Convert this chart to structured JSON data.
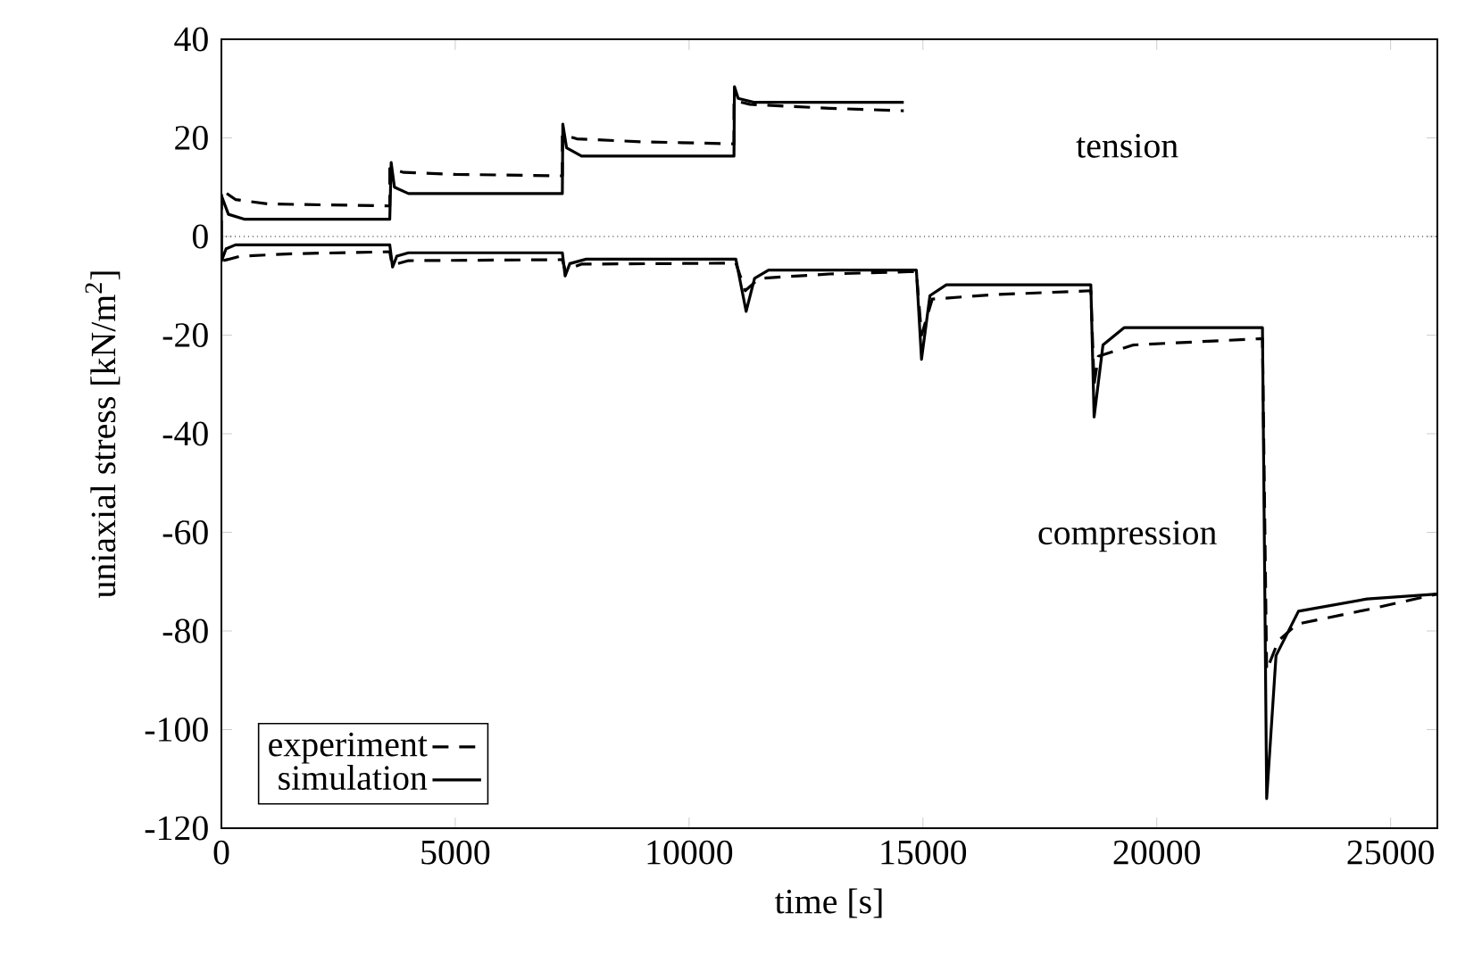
{
  "chart_data": {
    "type": "line",
    "xlabel": "time [s]",
    "ylabel": "uniaxial stress [kN/m$^{2}$]",
    "xlim": [
      0,
      26000
    ],
    "ylim": [
      -120,
      40
    ],
    "xticks": [
      0,
      5000,
      10000,
      15000,
      20000,
      25000
    ],
    "yticks": [
      -120,
      -100,
      -80,
      -60,
      -40,
      -20,
      0,
      20,
      40
    ],
    "grid": false,
    "legend": "bottom left",
    "marker": "none",
    "ref_lines": [
      {
        "axis": "y",
        "value": 0,
        "line_style": "dotted",
        "color": "#000000"
      }
    ],
    "annotations": [
      "tension",
      "compression"
    ],
    "series": [
      {
        "name": "experiment",
        "color": "#000000",
        "line_style": "dashed",
        "x": [
          0,
          0,
          300,
          1000,
          3600,
          3600,
          3900,
          5000,
          7290,
          7290,
          7600,
          9000,
          10960,
          10960,
          11300,
          13000,
          14590,
          null,
          0,
          0,
          400,
          1500,
          3600,
          3650,
          4000,
          7290,
          7350,
          7700,
          11000,
          11200,
          11500,
          13000,
          14860,
          14970,
          15200,
          16500,
          18590,
          18660,
          18750,
          19500,
          22260,
          22350,
          22600,
          23000,
          24540,
          26000
        ],
        "values": [
          0,
          9.5,
          7.5,
          6.6,
          6.2,
          13.8,
          13.0,
          12.6,
          12.3,
          20.7,
          19.8,
          19.2,
          18.8,
          27.6,
          26.8,
          26.0,
          25.5,
          null,
          0,
          -5.0,
          -4.0,
          -3.5,
          -3.1,
          -5.8,
          -4.9,
          -4.7,
          -6.8,
          -5.6,
          -5.4,
          -11.0,
          -8.5,
          -7.6,
          -7.1,
          -20.0,
          -12.7,
          -11.8,
          -11.0,
          -30.0,
          -24.3,
          -22.0,
          -20.7,
          -88.0,
          -82.0,
          -78.6,
          -75.6,
          -72.5
        ]
      },
      {
        "name": "simulation",
        "color": "#000000",
        "line_style": "solid",
        "x": [
          0,
          0,
          150,
          500,
          3600,
          3630,
          3700,
          4000,
          7290,
          7300,
          7380,
          7700,
          10960,
          10970,
          11050,
          11400,
          14590,
          null,
          0,
          0,
          100,
          300,
          3600,
          3660,
          3750,
          4000,
          7290,
          7350,
          7450,
          7800,
          11000,
          11220,
          11400,
          11700,
          14860,
          14970,
          15150,
          15500,
          18590,
          18660,
          18850,
          19300,
          22260,
          22350,
          22550,
          23030,
          24500,
          26000
        ],
        "values": [
          0,
          8.3,
          4.5,
          3.5,
          3.5,
          15.0,
          10.0,
          8.7,
          8.7,
          22.8,
          18.0,
          16.3,
          16.3,
          30.4,
          28.0,
          27.2,
          27.2,
          null,
          0,
          -5.0,
          -2.5,
          -1.7,
          -1.7,
          -6.2,
          -4.0,
          -3.3,
          -3.3,
          -8.0,
          -5.5,
          -4.6,
          -4.6,
          -15.2,
          -8.5,
          -6.8,
          -6.8,
          -24.9,
          -12.0,
          -9.8,
          -9.8,
          -36.6,
          -22.0,
          -18.5,
          -18.5,
          -114.0,
          -85.0,
          -76.0,
          -73.5,
          -72.5
        ]
      }
    ]
  }
}
